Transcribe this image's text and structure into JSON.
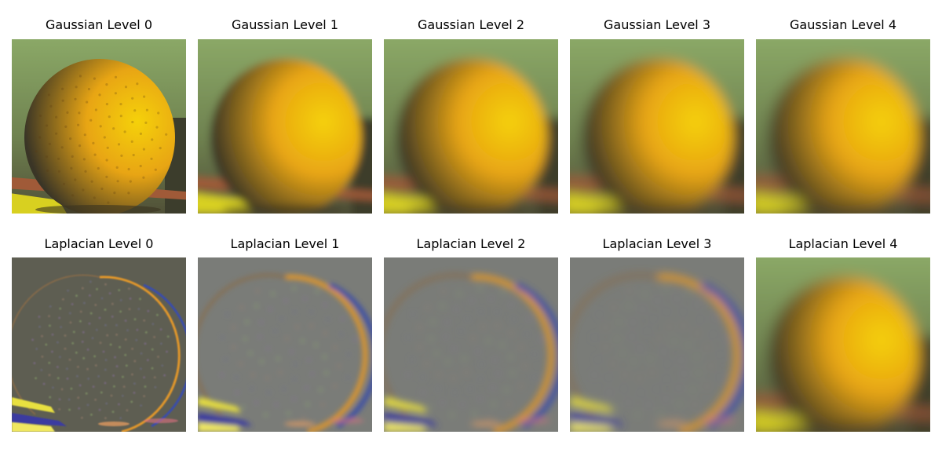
{
  "rows": [
    {
      "name": "gaussian",
      "panels": [
        {
          "title": "Gaussian Level 0",
          "kind": "gaussian",
          "level": 0
        },
        {
          "title": "Gaussian Level 1",
          "kind": "gaussian",
          "level": 1
        },
        {
          "title": "Gaussian Level 2",
          "kind": "gaussian",
          "level": 2
        },
        {
          "title": "Gaussian Level 3",
          "kind": "gaussian",
          "level": 3
        },
        {
          "title": "Gaussian Level 4",
          "kind": "gaussian",
          "level": 4
        }
      ]
    },
    {
      "name": "laplacian",
      "panels": [
        {
          "title": "Laplacian Level 0",
          "kind": "laplacian",
          "level": 0
        },
        {
          "title": "Laplacian Level 1",
          "kind": "laplacian",
          "level": 1
        },
        {
          "title": "Laplacian Level 2",
          "kind": "laplacian",
          "level": 2
        },
        {
          "title": "Laplacian Level 3",
          "kind": "laplacian",
          "level": 3
        },
        {
          "title": "Laplacian Level 4",
          "kind": "gaussian",
          "level": 4
        }
      ]
    }
  ],
  "colors": {
    "background_green": "#8fae6a",
    "orange_bright": "#f5d10a",
    "orange_mid": "#e8a514",
    "orange_dark": "#3a3526",
    "table_shadow": "#4a4632",
    "plank_red": "#a05a38",
    "plank_yellow": "#d8d020",
    "laplacian_gray": "#6e6e66",
    "edge_orange": "#e0962a",
    "edge_blue": "#3a4ea8"
  }
}
